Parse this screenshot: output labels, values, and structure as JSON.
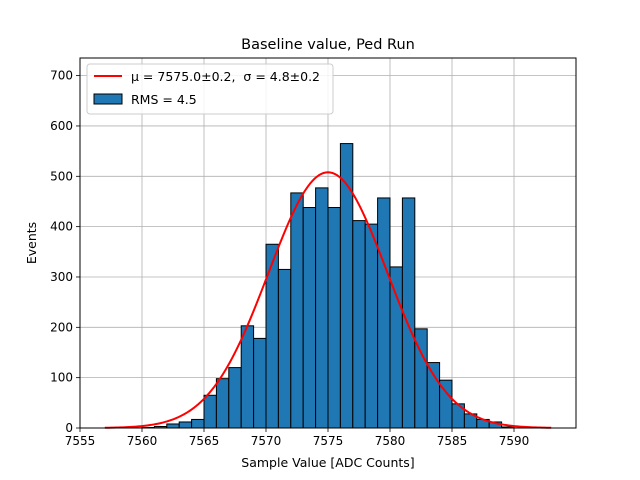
{
  "chart_data": {
    "type": "bar",
    "title": "Baseline value, Ped Run",
    "xlabel": "Sample Value [ADC Counts]",
    "ylabel": "Events",
    "xlim": [
      7555,
      7595
    ],
    "ylim": [
      0,
      735
    ],
    "grid": true,
    "legend_position": "top-left",
    "x_ticks": [
      "7555",
      "7560",
      "7565",
      "7570",
      "7575",
      "7580",
      "7585",
      "7590"
    ],
    "y_ticks": [
      "0",
      "100",
      "200",
      "300",
      "400",
      "500",
      "600",
      "700"
    ],
    "colors": {
      "bars": "#1f77b4",
      "bar_edge": "#000000",
      "fit": "#ff0000",
      "grid": "#b0b0b0"
    },
    "histogram": {
      "bin_start": 7560,
      "bin_width": 1,
      "series_name": "RMS = 4.5",
      "counts": [
        1,
        3,
        8,
        12,
        17,
        65,
        98,
        120,
        203,
        178,
        365,
        315,
        467,
        438,
        477,
        438,
        565,
        412,
        405,
        457,
        320,
        457,
        197,
        130,
        95,
        48,
        28,
        17,
        12,
        2
      ]
    },
    "fit": {
      "label_mu": "μ = 7575.0±0.2,",
      "label_sigma": "σ = 4.8±0.2",
      "mu": 7575.0,
      "sigma": 4.8,
      "amplitude": 508,
      "x_range": [
        7557,
        7593
      ]
    }
  }
}
